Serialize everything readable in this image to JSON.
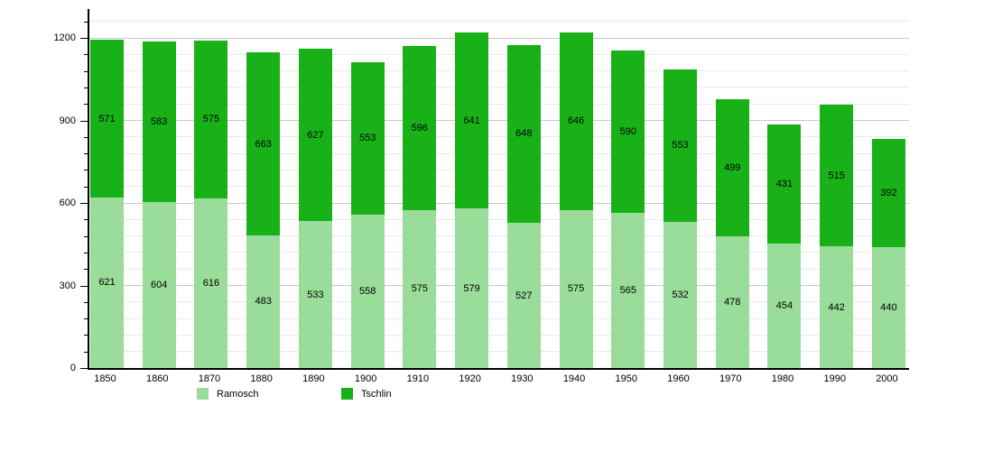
{
  "chart_data": {
    "type": "bar",
    "stacked": true,
    "title": "",
    "xlabel": "",
    "ylabel": "",
    "categories": [
      "1850",
      "1860",
      "1870",
      "1880",
      "1890",
      "1900",
      "1910",
      "1920",
      "1930",
      "1940",
      "1950",
      "1960",
      "1970",
      "1980",
      "1990",
      "2000"
    ],
    "series": [
      {
        "name": "Ramosch",
        "color": "#9adc9a",
        "values": [
          621,
          604,
          616,
          483,
          533,
          558,
          575,
          579,
          527,
          575,
          565,
          532,
          478,
          454,
          442,
          440
        ]
      },
      {
        "name": "Tschlin",
        "color": "#18b218",
        "values": [
          571,
          583,
          575,
          663,
          627,
          553,
          596,
          641,
          648,
          646,
          590,
          553,
          499,
          431,
          515,
          392
        ]
      }
    ],
    "ylim": [
      0,
      1305
    ],
    "y_major_ticks": [
      0,
      300,
      600,
      900,
      1200
    ],
    "y_minor_step": 60,
    "grid": true,
    "bar_value_labels": true,
    "legend_position": "bottom"
  },
  "legend": {
    "items": [
      {
        "label": "Ramosch",
        "color": "#9adc9a"
      },
      {
        "label": "Tschlin",
        "color": "#18b218"
      }
    ]
  },
  "colors": {
    "background": "#ffffff",
    "axis": "#000000",
    "grid_minor": "#eaeaea",
    "grid_major": "#c9c9c9",
    "text": "#000000"
  }
}
